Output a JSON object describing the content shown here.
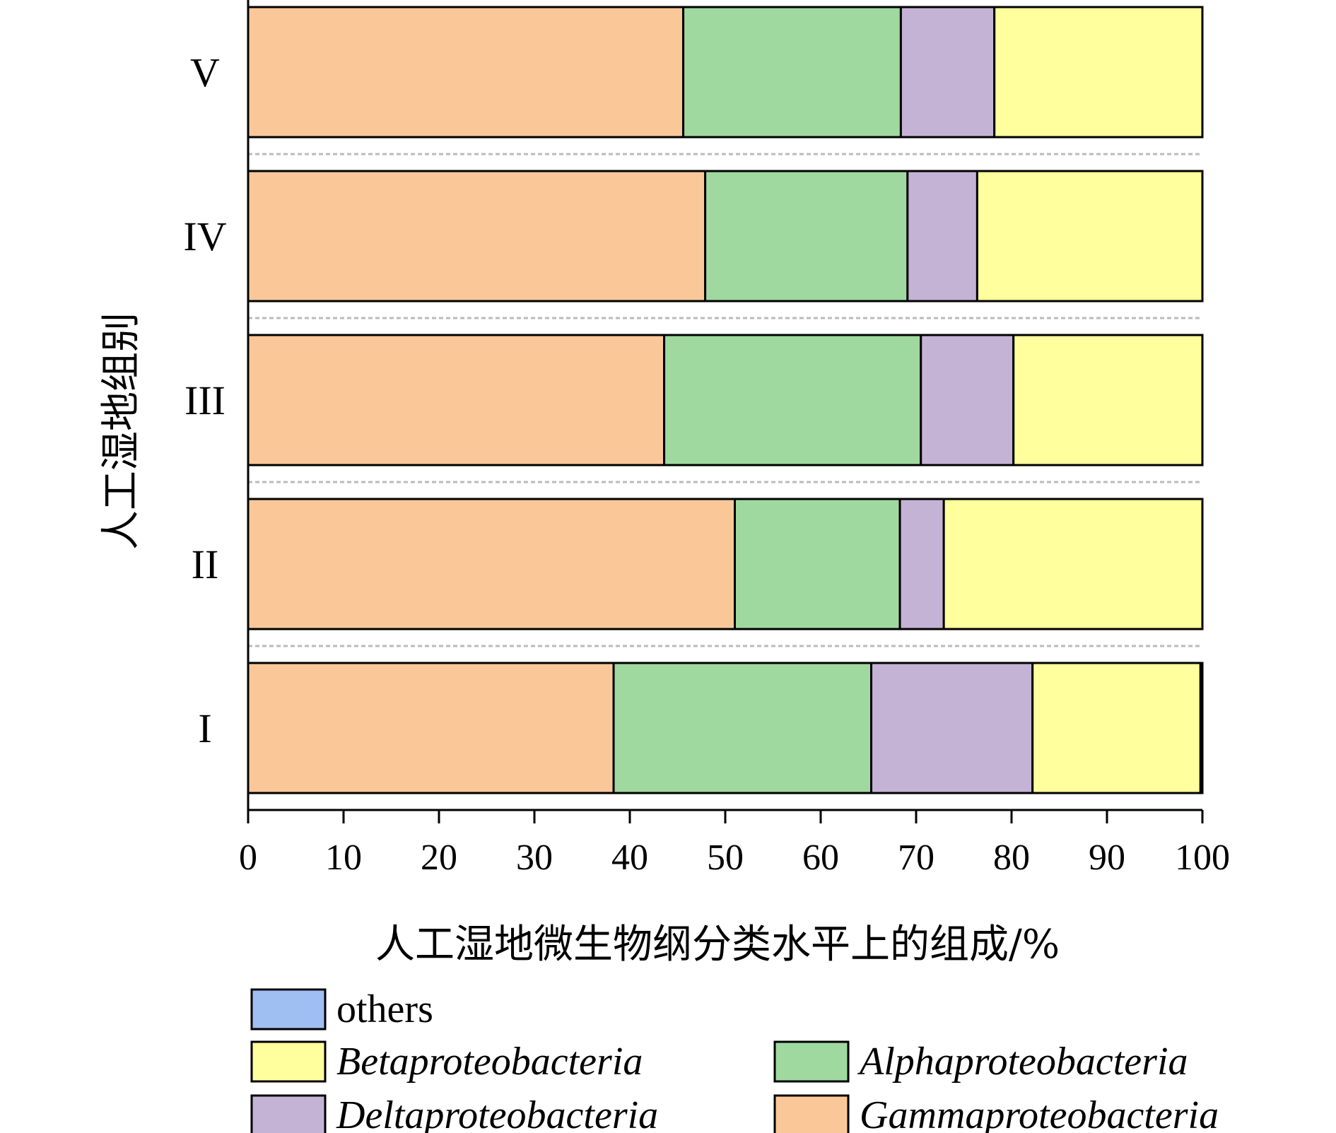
{
  "chart_data": {
    "type": "bar",
    "orientation": "horizontal",
    "stacked": true,
    "categories": [
      "I",
      "II",
      "III",
      "IV",
      "V"
    ],
    "series": [
      {
        "name": "Gammaproteobacteria",
        "color": "#FAC898",
        "values": [
          38.3,
          51.0,
          43.6,
          47.9,
          45.6
        ]
      },
      {
        "name": "Alphaproteobacteria",
        "color": "#A0D9A0",
        "values": [
          27.0,
          17.3,
          26.9,
          21.2,
          22.8
        ]
      },
      {
        "name": "Deltaproteobacteria",
        "color": "#C5B3D6",
        "values": [
          16.9,
          4.6,
          9.7,
          7.3,
          9.8
        ]
      },
      {
        "name": "Betaproteobacteria",
        "color": "#FFFF9E",
        "values": [
          17.6,
          27.1,
          19.8,
          23.6,
          21.8
        ]
      },
      {
        "name": "others",
        "color": "#9FBEF2",
        "values": [
          0.2,
          0.0,
          0.0,
          0.0,
          0.0
        ]
      }
    ],
    "xlabel": "人工湿地微生物纲分类水平上的组成/%",
    "ylabel": "人工湿地组别",
    "xlim": [
      0,
      100
    ],
    "xticks": [
      "0",
      "10",
      "20",
      "30",
      "40",
      "50",
      "60",
      "70",
      "80",
      "90",
      "100"
    ],
    "grid": false,
    "legend_position": "bottom",
    "legend_order": [
      "others",
      "Betaproteobacteria",
      "Alphaproteobacteria",
      "Deltaproteobacteria",
      "Gammaproteobacteria"
    ]
  }
}
